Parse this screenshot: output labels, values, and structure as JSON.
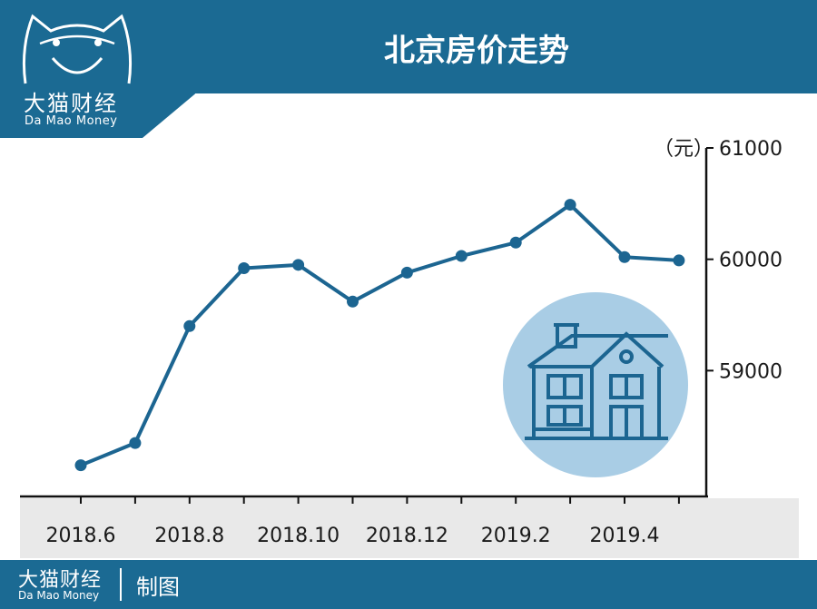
{
  "header": {
    "title": "北京房价走势",
    "brand_cn": "大猫财经",
    "brand_en": "Da Mao Money"
  },
  "unit": "（元）",
  "footer": {
    "brand_cn": "大猫财经",
    "brand_en": "Da Mao Money",
    "credit": "制图"
  },
  "colors": {
    "brand_blue": "#1b6a93",
    "line": "#1c6591",
    "axis_band": "#e9e9e9",
    "house_circle": "#a9cde5"
  },
  "icons": [
    "cat-face-logo-icon",
    "house-icon"
  ],
  "chart_data": {
    "type": "line",
    "title": "北京房价走势",
    "x_tick_labels": [
      "2018.6",
      "2018.8",
      "2018.10",
      "2018.12",
      "2019.2",
      "2019.4"
    ],
    "x": [
      "2018.6",
      "2018.7",
      "2018.8",
      "2018.9",
      "2018.10",
      "2018.11",
      "2018.12",
      "2019.1",
      "2019.2",
      "2019.3",
      "2019.4",
      "2019.5"
    ],
    "values": [
      58150,
      58350,
      59400,
      59920,
      59950,
      59620,
      59880,
      60030,
      60150,
      60490,
      60020,
      59990
    ],
    "y_ticks": [
      59000,
      60000,
      61000
    ],
    "ylim": [
      57870,
      61000
    ],
    "ylabel": "（元）",
    "y_axis_side": "right",
    "grid": false,
    "legend": "none",
    "markers": true
  }
}
